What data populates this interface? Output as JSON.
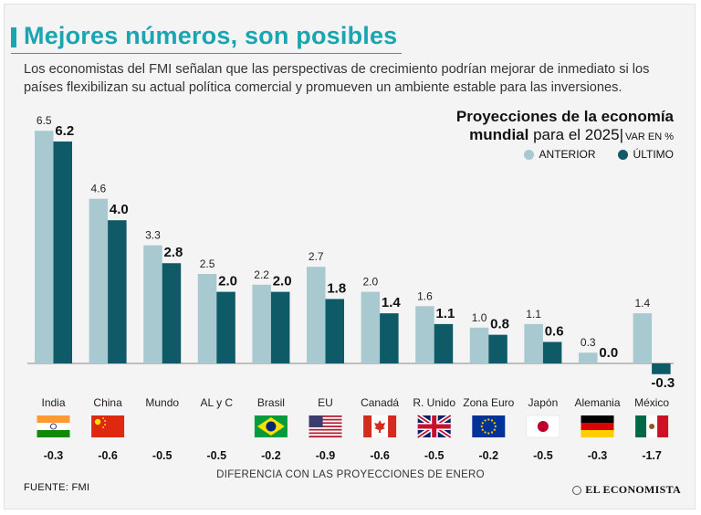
{
  "header": {
    "title": "Mejores números, son posibles",
    "subtitle": "Los economistas del FMI señalan que las perspectivas de crecimiento podrían mejorar de inmediato si los países flexibilizan su actual política comercial y promueven un ambiente estable para las inversiones."
  },
  "projection": {
    "line1": "Proyecciones de la economía",
    "line2_bold": "mundial",
    "line2_rest": " para el 2025|",
    "line2_unit": "VAR EN %"
  },
  "legend": {
    "anterior": "ANTERIOR",
    "ultimo": "ÚLTIMO"
  },
  "colors": {
    "anterior": "#a9c9d1",
    "ultimo": "#0e5a67",
    "accent": "#1aa5b2"
  },
  "footer": {
    "source": "FUENTE: FMI",
    "diff_label": "DIFERENCIA CON LAS PROYECCIONES DE ENERO",
    "brand": "EL ECONOMISTA"
  },
  "chart_data": {
    "type": "bar",
    "title": "Proyecciones de la economía mundial para el 2025",
    "ylabel": "VAR EN %",
    "categories": [
      "India",
      "China",
      "Mundo",
      "AL y C",
      "Brasil",
      "EU",
      "Canadá",
      "R. Unido",
      "Zona Euro",
      "Japón",
      "Alemania",
      "México"
    ],
    "series": [
      {
        "name": "ANTERIOR",
        "values": [
          6.5,
          4.6,
          3.3,
          2.5,
          2.2,
          2.7,
          2.0,
          1.6,
          1.0,
          1.1,
          0.3,
          1.4
        ]
      },
      {
        "name": "ÚLTIMO",
        "values": [
          6.2,
          4.0,
          2.8,
          2.0,
          2.0,
          1.8,
          1.4,
          1.1,
          0.8,
          0.6,
          0.0,
          -0.3
        ]
      }
    ],
    "value_labels_anterior": [
      "6.5",
      "4.6",
      "3.3",
      "2.5",
      "2.2",
      "2.7",
      "2.0",
      "1.6",
      "1.0",
      "1.1",
      "0.3",
      "1.4"
    ],
    "value_labels_ultimo": [
      "6.2",
      "4.0",
      "2.8",
      "2.0",
      "2.0",
      "1.8",
      "1.4",
      "1.1",
      "0.8",
      "0.6",
      "0.0",
      "-0.3"
    ],
    "difference": [
      "-0.3",
      "-0.6",
      "-0.5",
      "-0.5",
      "-0.2",
      "-0.9",
      "-0.6",
      "-0.5",
      "-0.2",
      "-0.5",
      "-0.3",
      "-1.7"
    ],
    "flags": [
      "india-flag",
      "china-flag",
      "",
      "",
      "brazil-flag",
      "usa-flag",
      "canada-flag",
      "uk-flag",
      "eu-flag",
      "japan-flag",
      "germany-flag",
      "mexico-flag"
    ],
    "ylim": [
      -0.4,
      6.6
    ],
    "grid": false,
    "legend_position": "top-right"
  }
}
